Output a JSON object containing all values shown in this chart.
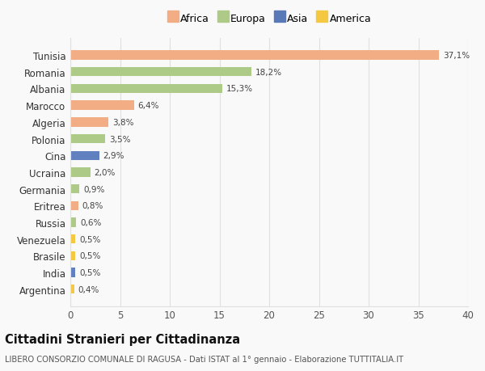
{
  "categories": [
    "Tunisia",
    "Romania",
    "Albania",
    "Marocco",
    "Algeria",
    "Polonia",
    "Cina",
    "Ucraina",
    "Germania",
    "Eritrea",
    "Russia",
    "Venezuela",
    "Brasile",
    "India",
    "Argentina"
  ],
  "values": [
    37.1,
    18.2,
    15.3,
    6.4,
    3.8,
    3.5,
    2.9,
    2.0,
    0.9,
    0.8,
    0.6,
    0.5,
    0.5,
    0.5,
    0.4
  ],
  "labels": [
    "37,1%",
    "18,2%",
    "15,3%",
    "6,4%",
    "3,8%",
    "3,5%",
    "2,9%",
    "2,0%",
    "0,9%",
    "0,8%",
    "0,6%",
    "0,5%",
    "0,5%",
    "0,5%",
    "0,4%"
  ],
  "bar_colors": [
    "#F2AD84",
    "#AECA87",
    "#AECA87",
    "#F2AD84",
    "#F2AD84",
    "#AECA87",
    "#6080C0",
    "#AECA87",
    "#AECA87",
    "#F2AD84",
    "#AECA87",
    "#F5C842",
    "#F5C842",
    "#6080C0",
    "#F5C842"
  ],
  "legend_colors": {
    "Africa": "#F2AD84",
    "Europa": "#AECA87",
    "Asia": "#5878B8",
    "America": "#F5C842"
  },
  "legend_order": [
    "Africa",
    "Europa",
    "Asia",
    "America"
  ],
  "title": "Cittadini Stranieri per Cittadinanza",
  "subtitle": "LIBERO CONSORZIO COMUNALE DI RAGUSA - Dati ISTAT al 1° gennaio - Elaborazione TUTTITALIA.IT",
  "xlim": [
    0,
    40
  ],
  "xticks": [
    0,
    5,
    10,
    15,
    20,
    25,
    30,
    35,
    40
  ],
  "background_color": "#f9f9f9",
  "grid_color": "#e0e0e0"
}
